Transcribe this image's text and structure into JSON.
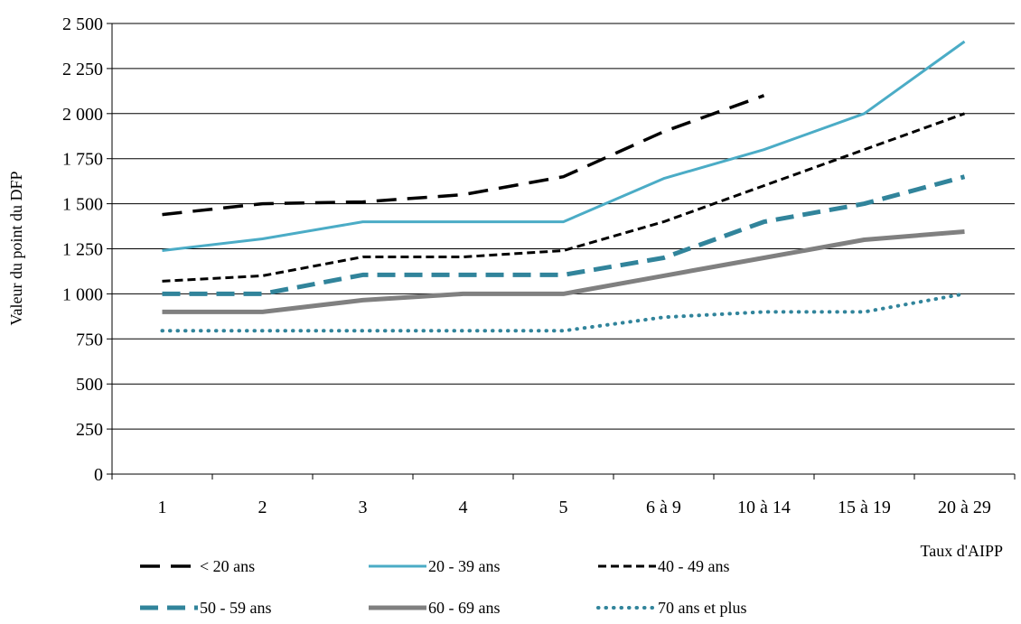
{
  "chart_data": {
    "type": "line",
    "title": "",
    "xlabel": "Taux d'AIPP",
    "ylabel": "Valeur du point du DFP",
    "ylim": [
      0,
      2500
    ],
    "yticks": [
      0,
      250,
      500,
      750,
      1000,
      1250,
      1500,
      1750,
      2000,
      2250,
      2500
    ],
    "ytick_labels": [
      "0",
      "250",
      "500",
      "750",
      "1 000",
      "1 250",
      "1 500",
      "1 750",
      "2 000",
      "2 250",
      "2 500"
    ],
    "categories": [
      "1",
      "2",
      "3",
      "4",
      "5",
      "6 à 9",
      "10 à 14",
      "15 à 19",
      "20 à 29"
    ],
    "grid": true,
    "legend_position": "bottom",
    "series": [
      {
        "name": "< 20 ans",
        "color": "#000000",
        "style": "long-dash",
        "values": [
          1440,
          1500,
          1510,
          1550,
          1650,
          1900,
          2100,
          null,
          null
        ]
      },
      {
        "name": "20 - 39 ans",
        "color": "#4bacc6",
        "style": "solid",
        "values": [
          1240,
          1305,
          1400,
          1400,
          1400,
          1640,
          1800,
          2000,
          2400
        ]
      },
      {
        "name": "40 - 49 ans",
        "color": "#000000",
        "style": "short-dash",
        "values": [
          1070,
          1100,
          1205,
          1205,
          1240,
          1400,
          1600,
          1800,
          2000
        ]
      },
      {
        "name": "50 - 59 ans",
        "color": "#31849b",
        "style": "thick-dash",
        "values": [
          1000,
          1000,
          1105,
          1105,
          1105,
          1200,
          1400,
          1500,
          1650
        ]
      },
      {
        "name": "60 - 69 ans",
        "color": "#808080",
        "style": "thick-solid",
        "values": [
          900,
          900,
          965,
          1000,
          1000,
          1100,
          1200,
          1300,
          1345
        ]
      },
      {
        "name": "70 ans et plus",
        "color": "#31849b",
        "style": "dotted",
        "values": [
          795,
          795,
          795,
          795,
          795,
          870,
          900,
          900,
          1000
        ]
      }
    ]
  }
}
